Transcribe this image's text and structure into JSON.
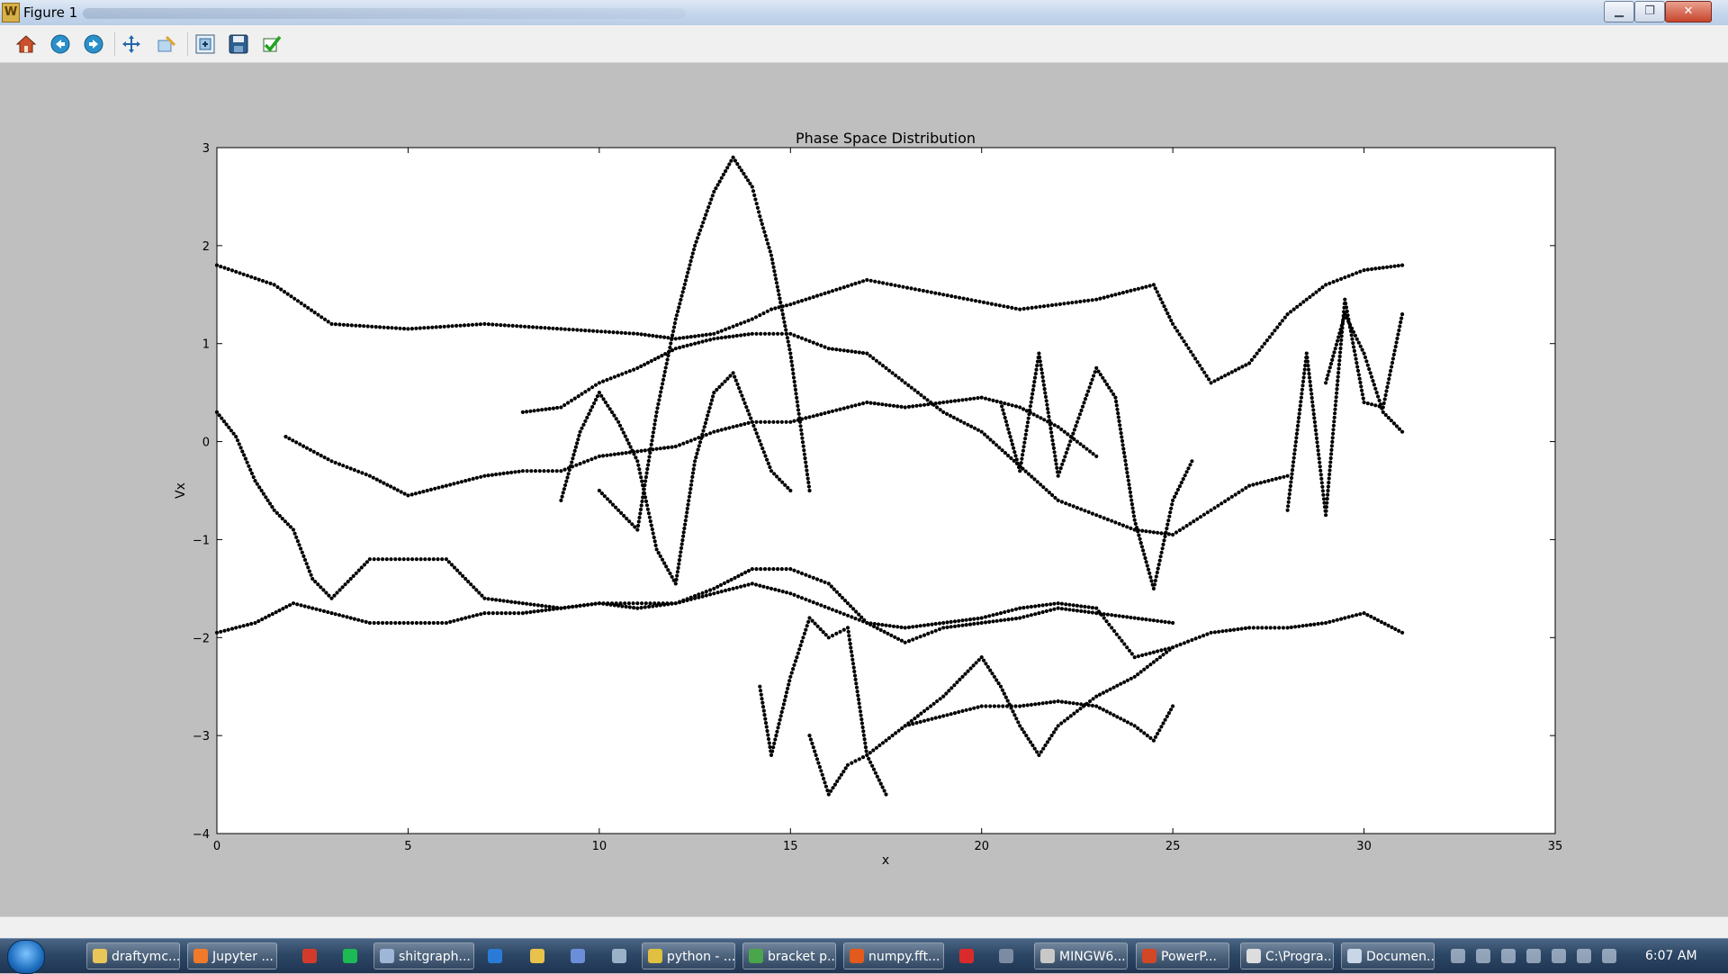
{
  "window": {
    "title": "Figure 1",
    "icon_name": "matplotlib-icon",
    "controls": [
      "minimize-icon",
      "maximize-icon",
      "close-icon"
    ]
  },
  "toolbar": {
    "buttons": [
      {
        "name": "home-button",
        "icon": "home-icon"
      },
      {
        "name": "back-button",
        "icon": "back-arrow-icon"
      },
      {
        "name": "forward-button",
        "icon": "forward-arrow-icon"
      },
      {
        "name": "pan-button",
        "icon": "pan-arrows-icon"
      },
      {
        "name": "zoom-button",
        "icon": "zoom-rect-icon"
      },
      {
        "name": "subplots-button",
        "icon": "configure-subplots-icon"
      },
      {
        "name": "save-button",
        "icon": "save-disk-icon"
      },
      {
        "name": "edit-button",
        "icon": "checkmark-icon"
      }
    ]
  },
  "chart_data": {
    "type": "scatter",
    "title": "Phase Space Distribution",
    "xlabel": "x",
    "ylabel": "Vx",
    "xlim": [
      0,
      35
    ],
    "ylim": [
      -4,
      3
    ],
    "xticks": [
      "0",
      "5",
      "10",
      "15",
      "20",
      "25",
      "30",
      "35"
    ],
    "yticks": [
      "3",
      "2",
      "1",
      "0",
      "−1",
      "−2",
      "−3",
      "−4"
    ],
    "grid": false,
    "legend": "none",
    "marker_color": "#000000",
    "series": [
      {
        "x": [
          0,
          1.5,
          3,
          5,
          7,
          9,
          11,
          12,
          13,
          14,
          14.5,
          15,
          17,
          19,
          21,
          23,
          24.5,
          25,
          26,
          27,
          28,
          29,
          30,
          31
        ],
        "y": [
          1.8,
          1.6,
          1.2,
          1.15,
          1.2,
          1.15,
          1.1,
          1.05,
          1.1,
          1.25,
          1.35,
          1.4,
          1.65,
          1.5,
          1.35,
          1.45,
          1.6,
          1.2,
          0.6,
          0.8,
          1.3,
          1.6,
          1.75,
          1.8
        ]
      },
      {
        "x": [
          0,
          1,
          2,
          3,
          4,
          5,
          6,
          7,
          8,
          9,
          10,
          11,
          12,
          13,
          14,
          15,
          16,
          17,
          18,
          19,
          20,
          21,
          22,
          23,
          24,
          25,
          26,
          27,
          28,
          29,
          30,
          31
        ],
        "y": [
          -1.95,
          -1.85,
          -1.65,
          -1.75,
          -1.85,
          -1.85,
          -1.85,
          -1.75,
          -1.75,
          -1.7,
          -1.65,
          -1.7,
          -1.65,
          -1.55,
          -1.45,
          -1.55,
          -1.7,
          -1.85,
          -1.9,
          -1.85,
          -1.8,
          -1.7,
          -1.65,
          -1.7,
          -2.2,
          -2.1,
          -1.95,
          -1.9,
          -1.9,
          -1.85,
          -1.75,
          -1.95
        ]
      },
      {
        "x": [
          0,
          0.5,
          1,
          1.5,
          2,
          2.5,
          3,
          3.5,
          4,
          5,
          6,
          7,
          8,
          9,
          10,
          11,
          12,
          13,
          14,
          15,
          16,
          17,
          18,
          19,
          20,
          21,
          22,
          23,
          24,
          25
        ],
        "y": [
          0.3,
          0.05,
          -0.4,
          -0.7,
          -0.9,
          -1.4,
          -1.6,
          -1.4,
          -1.2,
          -1.2,
          -1.2,
          -1.6,
          -1.65,
          -1.7,
          -1.65,
          -1.65,
          -1.65,
          -1.5,
          -1.3,
          -1.3,
          -1.45,
          -1.85,
          -2.05,
          -1.9,
          -1.85,
          -1.8,
          -1.7,
          -1.75,
          -1.8,
          -1.85
        ]
      },
      {
        "x": [
          1.8,
          3,
          4,
          5,
          6,
          7,
          8,
          9,
          10,
          11,
          12,
          13,
          14,
          15,
          16,
          17,
          18,
          19,
          20,
          21,
          22,
          23
        ],
        "y": [
          0.05,
          -0.2,
          -0.35,
          -0.55,
          -0.45,
          -0.35,
          -0.3,
          -0.3,
          -0.15,
          -0.1,
          -0.05,
          0.1,
          0.2,
          0.2,
          0.3,
          0.4,
          0.35,
          0.4,
          0.45,
          0.35,
          0.15,
          -0.15
        ]
      },
      {
        "x": [
          8,
          9,
          10,
          11,
          12,
          13,
          14,
          15,
          16,
          17,
          18,
          19,
          20,
          21,
          22,
          23,
          24,
          25,
          26,
          27,
          28
        ],
        "y": [
          0.3,
          0.35,
          0.6,
          0.75,
          0.95,
          1.05,
          1.1,
          1.1,
          0.95,
          0.9,
          0.6,
          0.3,
          0.1,
          -0.25,
          -0.6,
          -0.75,
          -0.9,
          -0.95,
          -0.7,
          -0.45,
          -0.35
        ]
      },
      {
        "x": [
          10,
          10.5,
          11,
          11.5,
          12,
          12.5,
          13,
          13.5,
          14,
          14.2,
          14.5,
          15,
          15.5
        ],
        "y": [
          -0.5,
          -0.7,
          -0.9,
          0.3,
          1.25,
          2.0,
          2.55,
          2.9,
          2.6,
          2.3,
          1.9,
          0.9,
          -0.5
        ]
      },
      {
        "x": [
          9,
          9.5,
          10,
          10.5,
          11,
          11.5,
          12,
          12.5,
          13,
          13.5,
          14,
          14.5,
          15
        ],
        "y": [
          -0.6,
          0.1,
          0.5,
          0.2,
          -0.2,
          -1.1,
          -1.45,
          -0.2,
          0.5,
          0.7,
          0.2,
          -0.3,
          -0.5
        ]
      },
      {
        "x": [
          14.2,
          14.5,
          15,
          15.5,
          16,
          16.5,
          17,
          17.5
        ],
        "y": [
          -2.5,
          -3.2,
          -2.4,
          -1.8,
          -2.0,
          -1.9,
          -3.2,
          -3.6
        ]
      },
      {
        "x": [
          15.5,
          16,
          16.5,
          17,
          18,
          19,
          20,
          21,
          22,
          23,
          24,
          24.5,
          25
        ],
        "y": [
          -3.0,
          -3.6,
          -3.3,
          -3.2,
          -2.9,
          -2.8,
          -2.7,
          -2.7,
          -2.65,
          -2.7,
          -2.9,
          -3.05,
          -2.7
        ]
      },
      {
        "x": [
          18,
          19,
          20,
          20.5,
          21,
          21.5,
          22,
          23,
          24,
          25
        ],
        "y": [
          -2.9,
          -2.6,
          -2.2,
          -2.5,
          -2.9,
          -3.2,
          -2.9,
          -2.6,
          -2.4,
          -2.1
        ]
      },
      {
        "x": [
          20.5,
          21,
          21.5,
          22,
          23,
          23.5,
          24,
          24.5,
          25,
          25.5
        ],
        "y": [
          0.4,
          -0.3,
          0.9,
          -0.35,
          0.75,
          0.45,
          -0.8,
          -1.5,
          -0.6,
          -0.2
        ]
      },
      {
        "x": [
          28,
          28.5,
          29,
          29.5,
          30,
          30.5,
          31
        ],
        "y": [
          -0.7,
          0.9,
          -0.75,
          1.45,
          0.4,
          0.35,
          1.3
        ]
      },
      {
        "x": [
          29,
          29.5,
          30,
          30.5,
          31
        ],
        "y": [
          0.6,
          1.3,
          0.9,
          0.3,
          0.1
        ]
      }
    ]
  },
  "taskbar": {
    "items": [
      {
        "label": "draftymc...",
        "color": "#e8c65a"
      },
      {
        "label": "Jupyter ...",
        "color": "#f07a2a"
      },
      {
        "label": "shitgraph...",
        "color": "#9fb7d6"
      },
      {
        "label": "python - ...",
        "color": "#e0c040"
      },
      {
        "label": "bracket p...",
        "color": "#4aa64a"
      },
      {
        "label": "numpy.fft...",
        "color": "#e25a1c"
      },
      {
        "label": "MINGW6...",
        "color": "#c8c8c8"
      },
      {
        "label": "PowerP...",
        "color": "#d24726"
      },
      {
        "label": "C:\\Progra...",
        "color": "#dddddd"
      },
      {
        "label": "Documen...",
        "color": "#c9d6e8"
      }
    ],
    "pinned_icons": [
      "app-red-icon",
      "spotify-icon",
      "ie-icon",
      "explorer-icon",
      "itunes-icon",
      "calculator-icon",
      "pdf-icon",
      "settings-icon"
    ],
    "clock": "6:07 AM"
  }
}
